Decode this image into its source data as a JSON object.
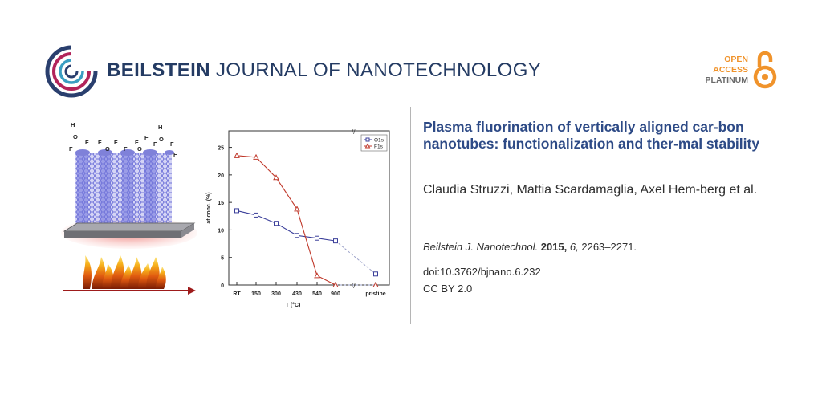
{
  "header": {
    "journal_bold": "BEILSTEIN",
    "journal_rest": " JOURNAL OF NANOTECHNOLOGY",
    "open_access_line1": "OPEN",
    "open_access_line2": "ACCESS",
    "open_access_line3": "PLATINUM",
    "logo_icon": "beilstein-swirl-logo",
    "oa_icon": "open-lock-icon",
    "colors": {
      "navy": "#243b63",
      "orange": "#f0932b",
      "title_blue": "#2d4a86"
    }
  },
  "article": {
    "title": "Plasma fluorination of vertically aligned car-bon nanotubes: functionalization and ther-mal stability",
    "authors": "Claudia Struzzi, Mattia Scardamaglia, Axel Hem-berg et al.",
    "journal_abbrev": "Beilstein J. Nanotechnol.",
    "year": "2015,",
    "volume": "6,",
    "pages": "2263–2271.",
    "doi": "doi:10.3762/bjnano.6.232",
    "license": "CC BY 2.0"
  },
  "illustration": {
    "atoms": [
      "H",
      "O",
      "F",
      "F",
      "O",
      "F",
      "F",
      "F",
      "O",
      "F",
      "F",
      "F",
      "H",
      "O",
      "F",
      "F"
    ]
  },
  "chart_data": {
    "type": "line",
    "categories": [
      "RT",
      "150",
      "300",
      "430",
      "540",
      "900",
      "pristine"
    ],
    "xlabel": "T (°C)",
    "ylabel": "at.conc. (%)",
    "ylim": [
      0,
      28
    ],
    "yticks": [
      "0",
      "5",
      "10",
      "15",
      "20",
      "25"
    ],
    "legend_position": "top-right",
    "series": [
      {
        "name": "O1s",
        "color": "#3b3f9a",
        "marker": "square",
        "values": [
          13.5,
          12.7,
          11.2,
          9.0,
          8.5,
          8.0,
          2.0
        ]
      },
      {
        "name": "F1s",
        "color": "#c0392b",
        "marker": "triangle",
        "values": [
          23.5,
          23.2,
          19.5,
          13.8,
          1.7,
          0.0,
          0.0
        ]
      }
    ]
  }
}
